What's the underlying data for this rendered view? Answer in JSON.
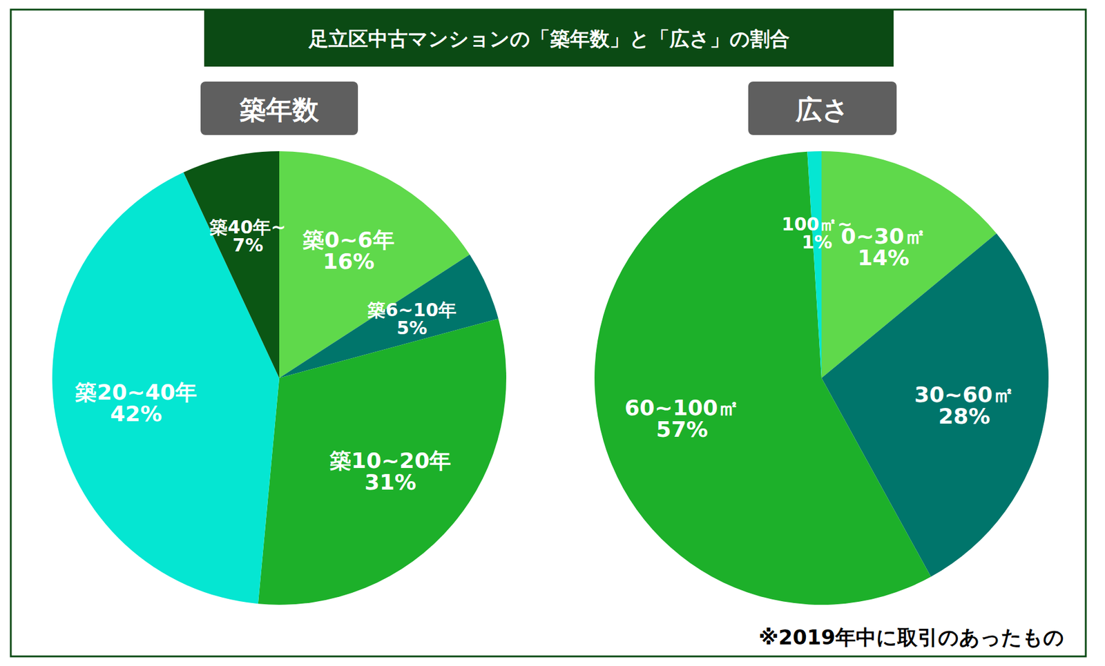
{
  "title": "足立区中古マンションの「築年数」と「広さ」の割合",
  "note": "※2019年中に取引のあったもの",
  "chart_data": [
    {
      "type": "pie",
      "title": "築年数",
      "categories": [
        "築0~6年",
        "築6~10年",
        "築10~20年",
        "築20~40年",
        "築40年~"
      ],
      "values": [
        16,
        5,
        31,
        42,
        7
      ],
      "value_labels": [
        "16%",
        "5%",
        "31%",
        "42%",
        "7%"
      ],
      "colors": [
        "#5fd94b",
        "#00756b",
        "#1db02a",
        "#05e6d2",
        "#0b5614"
      ],
      "data_labels": true
    },
    {
      "type": "pie",
      "title": "広さ",
      "categories": [
        "0~30㎡",
        "30~60㎡",
        "60~100㎡",
        "100㎡~"
      ],
      "values": [
        14,
        28,
        57,
        1
      ],
      "value_labels": [
        "14%",
        "28%",
        "57%",
        "1%"
      ],
      "colors": [
        "#5fd94b",
        "#00756b",
        "#1db02a",
        "#05e6d2"
      ],
      "data_labels": true
    }
  ]
}
